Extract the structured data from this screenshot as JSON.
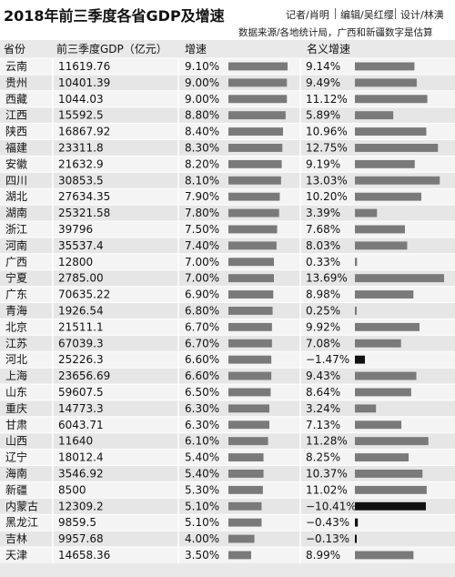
{
  "header": {
    "title": "2018年前三季度各省GDP及增速",
    "reporter": "记者/肖明",
    "editor": "编辑/吴红缨",
    "designer": "设计/林潢",
    "source": "数据来源/各地统计局，广西和新疆数字是估算"
  },
  "columns": {
    "province": "省份",
    "gdp": "前三季度GDP（亿元）",
    "growth": "增速",
    "nominal": "名义增速"
  },
  "colors": {
    "bar": "#7a7a7a",
    "negative_bar": "#111111",
    "header_bg": "#ffffff",
    "row_bg_light": "#f4f4f4",
    "row_bg_dark": "#e6e6e6"
  },
  "chart_data": {
    "type": "table",
    "title": "2018年前三季度各省GDP及增速",
    "rows": [
      {
        "province": "云南",
        "gdp": "11619.76",
        "growth": 9.1,
        "growth_label": "9.10%",
        "nominal": 9.14,
        "nominal_label": "9.14%"
      },
      {
        "province": "贵州",
        "gdp": "10401.39",
        "growth": 9.0,
        "growth_label": "9.00%",
        "nominal": 9.49,
        "nominal_label": "9.49%"
      },
      {
        "province": "西藏",
        "gdp": "1044.03",
        "growth": 9.0,
        "growth_label": "9.00%",
        "nominal": 11.12,
        "nominal_label": "11.12%"
      },
      {
        "province": "江西",
        "gdp": "15592.5",
        "growth": 8.8,
        "growth_label": "8.80%",
        "nominal": 5.89,
        "nominal_label": "5.89%"
      },
      {
        "province": "陕西",
        "gdp": "16867.92",
        "growth": 8.4,
        "growth_label": "8.40%",
        "nominal": 10.96,
        "nominal_label": "10.96%"
      },
      {
        "province": "福建",
        "gdp": "23311.8",
        "growth": 8.3,
        "growth_label": "8.30%",
        "nominal": 12.75,
        "nominal_label": "12.75%"
      },
      {
        "province": "安徽",
        "gdp": "21632.9",
        "growth": 8.2,
        "growth_label": "8.20%",
        "nominal": 9.19,
        "nominal_label": "9.19%"
      },
      {
        "province": "四川",
        "gdp": "30853.5",
        "growth": 8.1,
        "growth_label": "8.10%",
        "nominal": 13.03,
        "nominal_label": "13.03%"
      },
      {
        "province": "湖北",
        "gdp": "27634.35",
        "growth": 7.9,
        "growth_label": "7.90%",
        "nominal": 10.2,
        "nominal_label": "10.20%"
      },
      {
        "province": "湖南",
        "gdp": "25321.58",
        "growth": 7.8,
        "growth_label": "7.80%",
        "nominal": 3.39,
        "nominal_label": "3.39%"
      },
      {
        "province": "浙江",
        "gdp": "39796",
        "growth": 7.5,
        "growth_label": "7.50%",
        "nominal": 7.68,
        "nominal_label": "7.68%"
      },
      {
        "province": "河南",
        "gdp": "35537.4",
        "growth": 7.4,
        "growth_label": "7.40%",
        "nominal": 8.03,
        "nominal_label": "8.03%"
      },
      {
        "province": "广西",
        "gdp": "12800",
        "growth": 7.0,
        "growth_label": "7.00%",
        "nominal": 0.33,
        "nominal_label": "0.33%"
      },
      {
        "province": "宁夏",
        "gdp": "2785.00",
        "growth": 7.0,
        "growth_label": "7.00%",
        "nominal": 13.69,
        "nominal_label": "13.69%"
      },
      {
        "province": "广东",
        "gdp": "70635.22",
        "growth": 6.9,
        "growth_label": "6.90%",
        "nominal": 8.98,
        "nominal_label": "8.98%"
      },
      {
        "province": "青海",
        "gdp": "1926.54",
        "growth": 6.8,
        "growth_label": "6.80%",
        "nominal": 0.25,
        "nominal_label": "0.25%"
      },
      {
        "province": "北京",
        "gdp": "21511.1",
        "growth": 6.7,
        "growth_label": "6.70%",
        "nominal": 9.92,
        "nominal_label": "9.92%"
      },
      {
        "province": "江苏",
        "gdp": "67039.3",
        "growth": 6.7,
        "growth_label": "6.70%",
        "nominal": 7.08,
        "nominal_label": "7.08%"
      },
      {
        "province": "河北",
        "gdp": "25226.3",
        "growth": 6.6,
        "growth_label": "6.60%",
        "nominal": -1.47,
        "nominal_label": "−1.47%"
      },
      {
        "province": "上海",
        "gdp": "23656.69",
        "growth": 6.6,
        "growth_label": "6.60%",
        "nominal": 9.43,
        "nominal_label": "9.43%"
      },
      {
        "province": "山东",
        "gdp": "59607.5",
        "growth": 6.5,
        "growth_label": "6.50%",
        "nominal": 8.64,
        "nominal_label": "8.64%"
      },
      {
        "province": "重庆",
        "gdp": "14773.3",
        "growth": 6.3,
        "growth_label": "6.30%",
        "nominal": 3.24,
        "nominal_label": "3.24%"
      },
      {
        "province": "甘肃",
        "gdp": "6043.71",
        "growth": 6.3,
        "growth_label": "6.30%",
        "nominal": 7.13,
        "nominal_label": "7.13%"
      },
      {
        "province": "山西",
        "gdp": "11640",
        "growth": 6.1,
        "growth_label": "6.10%",
        "nominal": 11.28,
        "nominal_label": "11.28%"
      },
      {
        "province": "辽宁",
        "gdp": "18012.4",
        "growth": 5.4,
        "growth_label": "5.40%",
        "nominal": 8.25,
        "nominal_label": "8.25%"
      },
      {
        "province": "海南",
        "gdp": "3546.92",
        "growth": 5.4,
        "growth_label": "5.40%",
        "nominal": 10.37,
        "nominal_label": "10.37%"
      },
      {
        "province": "新疆",
        "gdp": "8500",
        "growth": 5.3,
        "growth_label": "5.30%",
        "nominal": 11.02,
        "nominal_label": "11.02%"
      },
      {
        "province": "内蒙古",
        "gdp": "12309.2",
        "growth": 5.1,
        "growth_label": "5.10%",
        "nominal": -10.41,
        "nominal_label": "−10.41%"
      },
      {
        "province": "黑龙江",
        "gdp": "9859.5",
        "growth": 5.1,
        "growth_label": "5.10%",
        "nominal": -0.43,
        "nominal_label": "−0.43%"
      },
      {
        "province": "吉林",
        "gdp": "9957.68",
        "growth": 4.0,
        "growth_label": "4.00%",
        "nominal": -0.13,
        "nominal_label": "−0.13%"
      },
      {
        "province": "天津",
        "gdp": "14658.36",
        "growth": 3.5,
        "growth_label": "3.50%",
        "nominal": 8.99,
        "nominal_label": "8.99%"
      }
    ]
  }
}
